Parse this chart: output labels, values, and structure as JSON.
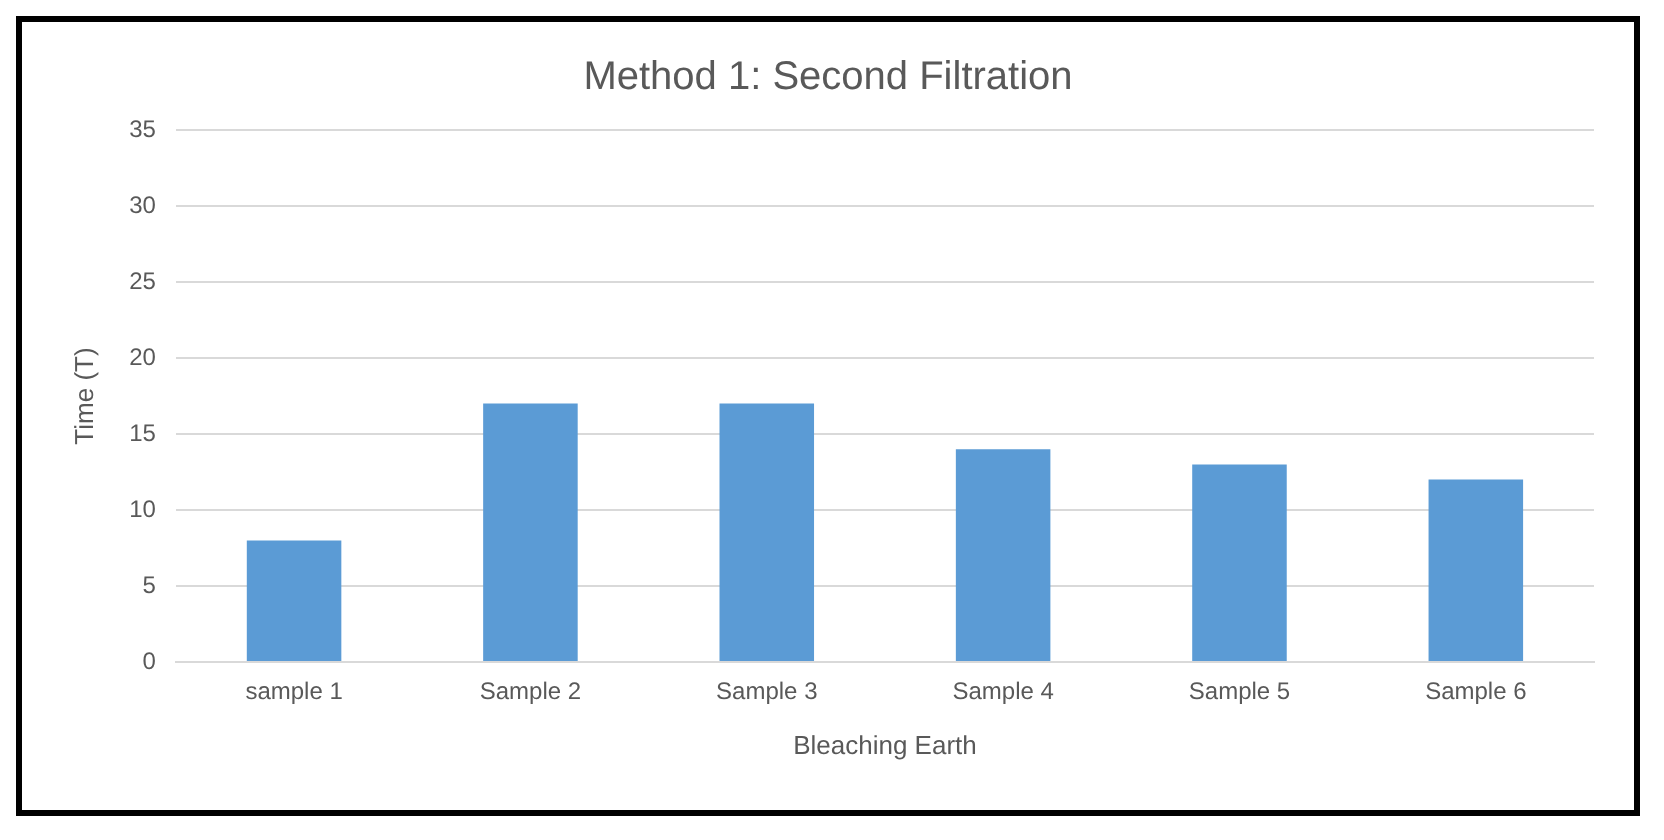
{
  "chart_data": {
    "type": "bar",
    "title": "Method 1: Second Filtration",
    "xlabel": "Bleaching Earth",
    "ylabel": "Time (T)",
    "categories": [
      "sample 1",
      "Sample 2",
      "Sample 3",
      "Sample 4",
      "Sample 5",
      "Sample 6"
    ],
    "values": [
      8,
      17,
      17,
      14,
      13,
      12
    ],
    "color": "#5b9bd5",
    "ylim": [
      0,
      35
    ],
    "yticks": [
      0,
      5,
      10,
      15,
      20,
      25,
      30,
      35
    ],
    "grid": "y"
  }
}
